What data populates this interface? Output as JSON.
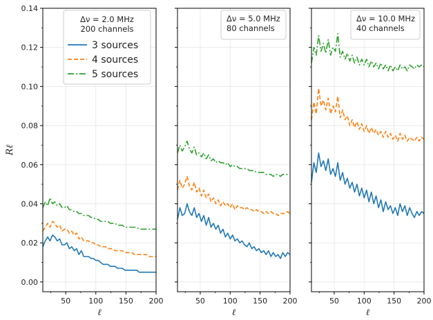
{
  "chart_data": {
    "type": "line",
    "ylabel": "Rℓ",
    "ylim": [
      -0.005,
      0.14
    ],
    "yticks": [
      0.0,
      0.02,
      0.04,
      0.06,
      0.08,
      0.1,
      0.12,
      0.14
    ],
    "xlim": [
      12,
      200
    ],
    "xticks": [
      50,
      100,
      150,
      200
    ],
    "grid": true,
    "legend_series": [
      "3 sources",
      "4 sources",
      "5 sources"
    ],
    "colors": {
      "3 sources": "#1f77b4",
      "4 sources": "#ff7f0e",
      "5 sources": "#2ca02c"
    },
    "panels": [
      {
        "xlabel": "ℓ",
        "info": [
          "Δν = 2.0 MHz",
          "200 channels"
        ],
        "legend_placement": "top-right",
        "series": [
          {
            "name": "3 sources",
            "x": [
              12,
              16,
              20,
              24,
              28,
              32,
              36,
              40,
              44,
              48,
              52,
              56,
              60,
              64,
              68,
              72,
              76,
              80,
              84,
              88,
              92,
              96,
              100,
              104,
              108,
              112,
              116,
              120,
              124,
              128,
              132,
              136,
              140,
              144,
              148,
              152,
              156,
              160,
              164,
              168,
              172,
              176,
              180,
              184,
              188,
              192,
              196,
              200
            ],
            "y": [
              0.018,
              0.021,
              0.023,
              0.021,
              0.024,
              0.023,
              0.021,
              0.022,
              0.019,
              0.019,
              0.02,
              0.017,
              0.018,
              0.016,
              0.017,
              0.014,
              0.016,
              0.013,
              0.013,
              0.013,
              0.012,
              0.012,
              0.011,
              0.011,
              0.01,
              0.009,
              0.009,
              0.009,
              0.008,
              0.008,
              0.008,
              0.007,
              0.007,
              0.007,
              0.006,
              0.006,
              0.006,
              0.006,
              0.006,
              0.006,
              0.005,
              0.005,
              0.005,
              0.005,
              0.005,
              0.005,
              0.005,
              0.005
            ]
          },
          {
            "name": "4 sources",
            "x": [
              12,
              16,
              20,
              24,
              28,
              32,
              36,
              40,
              44,
              48,
              52,
              56,
              60,
              64,
              68,
              72,
              76,
              80,
              84,
              88,
              92,
              96,
              100,
              104,
              108,
              112,
              116,
              120,
              124,
              128,
              132,
              136,
              140,
              144,
              148,
              152,
              156,
              160,
              164,
              168,
              172,
              176,
              180,
              184,
              188,
              192,
              196,
              200
            ],
            "y": [
              0.026,
              0.028,
              0.03,
              0.028,
              0.031,
              0.03,
              0.028,
              0.029,
              0.026,
              0.027,
              0.027,
              0.025,
              0.026,
              0.024,
              0.025,
              0.022,
              0.023,
              0.021,
              0.021,
              0.021,
              0.02,
              0.02,
              0.019,
              0.019,
              0.018,
              0.018,
              0.018,
              0.017,
              0.017,
              0.017,
              0.016,
              0.016,
              0.016,
              0.016,
              0.015,
              0.015,
              0.015,
              0.015,
              0.014,
              0.014,
              0.014,
              0.014,
              0.014,
              0.014,
              0.013,
              0.013,
              0.013,
              0.013
            ]
          },
          {
            "name": "5 sources",
            "x": [
              12,
              16,
              20,
              24,
              28,
              32,
              36,
              40,
              44,
              48,
              52,
              56,
              60,
              64,
              68,
              72,
              76,
              80,
              84,
              88,
              92,
              96,
              100,
              104,
              108,
              112,
              116,
              120,
              124,
              128,
              132,
              136,
              140,
              144,
              148,
              152,
              156,
              160,
              164,
              168,
              172,
              176,
              180,
              184,
              188,
              192,
              196,
              200
            ],
            "y": [
              0.038,
              0.041,
              0.039,
              0.043,
              0.04,
              0.041,
              0.039,
              0.04,
              0.038,
              0.038,
              0.039,
              0.037,
              0.037,
              0.036,
              0.036,
              0.035,
              0.035,
              0.034,
              0.034,
              0.034,
              0.033,
              0.033,
              0.032,
              0.032,
              0.031,
              0.031,
              0.031,
              0.031,
              0.03,
              0.03,
              0.03,
              0.029,
              0.029,
              0.029,
              0.028,
              0.028,
              0.028,
              0.028,
              0.028,
              0.028,
              0.027,
              0.027,
              0.027,
              0.027,
              0.027,
              0.027,
              0.027,
              0.027
            ]
          }
        ]
      },
      {
        "xlabel": "ℓ",
        "info": [
          "Δν = 5.0 MHz",
          "80 channels"
        ],
        "legend_placement": "top-right",
        "series": [
          {
            "name": "3 sources",
            "x": [
              12,
              16,
              20,
              24,
              28,
              32,
              36,
              40,
              44,
              48,
              52,
              56,
              60,
              64,
              68,
              72,
              76,
              80,
              84,
              88,
              92,
              96,
              100,
              104,
              108,
              112,
              116,
              120,
              124,
              128,
              132,
              136,
              140,
              144,
              148,
              152,
              156,
              160,
              164,
              168,
              172,
              176,
              180,
              184,
              188,
              192,
              196,
              200
            ],
            "y": [
              0.032,
              0.038,
              0.034,
              0.035,
              0.04,
              0.036,
              0.034,
              0.038,
              0.033,
              0.035,
              0.031,
              0.034,
              0.029,
              0.033,
              0.028,
              0.03,
              0.027,
              0.029,
              0.025,
              0.027,
              0.023,
              0.025,
              0.022,
              0.024,
              0.021,
              0.022,
              0.02,
              0.021,
              0.019,
              0.018,
              0.02,
              0.017,
              0.018,
              0.016,
              0.017,
              0.015,
              0.016,
              0.014,
              0.016,
              0.013,
              0.015,
              0.013,
              0.014,
              0.012,
              0.015,
              0.013,
              0.015,
              0.014
            ]
          },
          {
            "name": "4 sources",
            "x": [
              12,
              16,
              20,
              24,
              28,
              32,
              36,
              40,
              44,
              48,
              52,
              56,
              60,
              64,
              68,
              72,
              76,
              80,
              84,
              88,
              92,
              96,
              100,
              104,
              108,
              112,
              116,
              120,
              124,
              128,
              132,
              136,
              140,
              144,
              148,
              152,
              156,
              160,
              164,
              168,
              172,
              176,
              180,
              184,
              188,
              192,
              196,
              200
            ],
            "y": [
              0.047,
              0.052,
              0.048,
              0.05,
              0.054,
              0.049,
              0.047,
              0.051,
              0.046,
              0.048,
              0.044,
              0.047,
              0.043,
              0.045,
              0.041,
              0.043,
              0.04,
              0.042,
              0.039,
              0.041,
              0.039,
              0.04,
              0.038,
              0.04,
              0.037,
              0.039,
              0.038,
              0.038,
              0.037,
              0.038,
              0.037,
              0.037,
              0.036,
              0.037,
              0.036,
              0.036,
              0.035,
              0.036,
              0.035,
              0.036,
              0.035,
              0.035,
              0.034,
              0.035,
              0.035,
              0.035,
              0.036,
              0.035
            ]
          },
          {
            "name": "5 sources",
            "x": [
              12,
              16,
              20,
              24,
              28,
              32,
              36,
              40,
              44,
              48,
              52,
              56,
              60,
              64,
              68,
              72,
              76,
              80,
              84,
              88,
              92,
              96,
              100,
              104,
              108,
              112,
              116,
              120,
              124,
              128,
              132,
              136,
              140,
              144,
              148,
              152,
              156,
              160,
              164,
              168,
              172,
              176,
              180,
              184,
              188,
              192,
              196,
              200
            ],
            "y": [
              0.066,
              0.07,
              0.067,
              0.069,
              0.072,
              0.068,
              0.066,
              0.069,
              0.065,
              0.066,
              0.064,
              0.066,
              0.063,
              0.065,
              0.062,
              0.063,
              0.061,
              0.062,
              0.061,
              0.061,
              0.06,
              0.061,
              0.059,
              0.06,
              0.059,
              0.059,
              0.058,
              0.058,
              0.058,
              0.058,
              0.057,
              0.057,
              0.057,
              0.056,
              0.056,
              0.056,
              0.056,
              0.055,
              0.055,
              0.055,
              0.054,
              0.055,
              0.055,
              0.054,
              0.055,
              0.055,
              0.055,
              0.055
            ]
          }
        ]
      },
      {
        "xlabel": "ℓ",
        "info": [
          "Δν = 10.0 MHz",
          "40 channels"
        ],
        "legend_placement": "top-right",
        "series": [
          {
            "name": "3 sources",
            "x": [
              12,
              16,
              20,
              24,
              28,
              32,
              36,
              40,
              44,
              48,
              52,
              56,
              60,
              64,
              68,
              72,
              76,
              80,
              84,
              88,
              92,
              96,
              100,
              104,
              108,
              112,
              116,
              120,
              124,
              128,
              132,
              136,
              140,
              144,
              148,
              152,
              156,
              160,
              164,
              168,
              172,
              176,
              180,
              184,
              188,
              192,
              196,
              200
            ],
            "y": [
              0.051,
              0.061,
              0.056,
              0.066,
              0.059,
              0.062,
              0.057,
              0.063,
              0.055,
              0.058,
              0.054,
              0.061,
              0.052,
              0.056,
              0.05,
              0.053,
              0.048,
              0.051,
              0.046,
              0.05,
              0.044,
              0.048,
              0.043,
              0.047,
              0.041,
              0.046,
              0.04,
              0.044,
              0.038,
              0.042,
              0.036,
              0.041,
              0.037,
              0.039,
              0.035,
              0.038,
              0.034,
              0.04,
              0.036,
              0.039,
              0.034,
              0.038,
              0.035,
              0.033,
              0.036,
              0.034,
              0.036,
              0.035
            ]
          },
          {
            "name": "4 sources",
            "x": [
              12,
              16,
              20,
              24,
              28,
              32,
              36,
              40,
              44,
              48,
              52,
              56,
              60,
              64,
              68,
              72,
              76,
              80,
              84,
              88,
              92,
              96,
              100,
              104,
              108,
              112,
              116,
              120,
              124,
              128,
              132,
              136,
              140,
              144,
              148,
              152,
              156,
              160,
              164,
              168,
              172,
              176,
              180,
              184,
              188,
              192,
              196,
              200
            ],
            "y": [
              0.083,
              0.092,
              0.086,
              0.099,
              0.09,
              0.093,
              0.088,
              0.094,
              0.086,
              0.09,
              0.087,
              0.095,
              0.084,
              0.088,
              0.083,
              0.085,
              0.08,
              0.083,
              0.079,
              0.082,
              0.078,
              0.081,
              0.077,
              0.08,
              0.076,
              0.079,
              0.076,
              0.078,
              0.075,
              0.077,
              0.074,
              0.077,
              0.074,
              0.076,
              0.073,
              0.075,
              0.072,
              0.076,
              0.073,
              0.075,
              0.072,
              0.074,
              0.073,
              0.072,
              0.074,
              0.072,
              0.074,
              0.073
            ]
          },
          {
            "name": "5 sources",
            "x": [
              12,
              16,
              20,
              24,
              28,
              32,
              36,
              40,
              44,
              48,
              52,
              56,
              60,
              64,
              68,
              72,
              76,
              80,
              84,
              88,
              92,
              96,
              100,
              104,
              108,
              112,
              116,
              120,
              124,
              128,
              132,
              136,
              140,
              144,
              148,
              152,
              156,
              160,
              164,
              168,
              172,
              176,
              180,
              184,
              188,
              192,
              196,
              200
            ],
            "y": [
              0.112,
              0.12,
              0.116,
              0.126,
              0.118,
              0.122,
              0.117,
              0.124,
              0.116,
              0.12,
              0.118,
              0.127,
              0.115,
              0.118,
              0.114,
              0.117,
              0.113,
              0.116,
              0.112,
              0.115,
              0.111,
              0.114,
              0.111,
              0.114,
              0.11,
              0.113,
              0.11,
              0.112,
              0.109,
              0.112,
              0.109,
              0.111,
              0.108,
              0.111,
              0.108,
              0.11,
              0.108,
              0.111,
              0.109,
              0.11,
              0.108,
              0.111,
              0.11,
              0.109,
              0.111,
              0.11,
              0.111,
              0.11
            ]
          }
        ]
      }
    ]
  }
}
